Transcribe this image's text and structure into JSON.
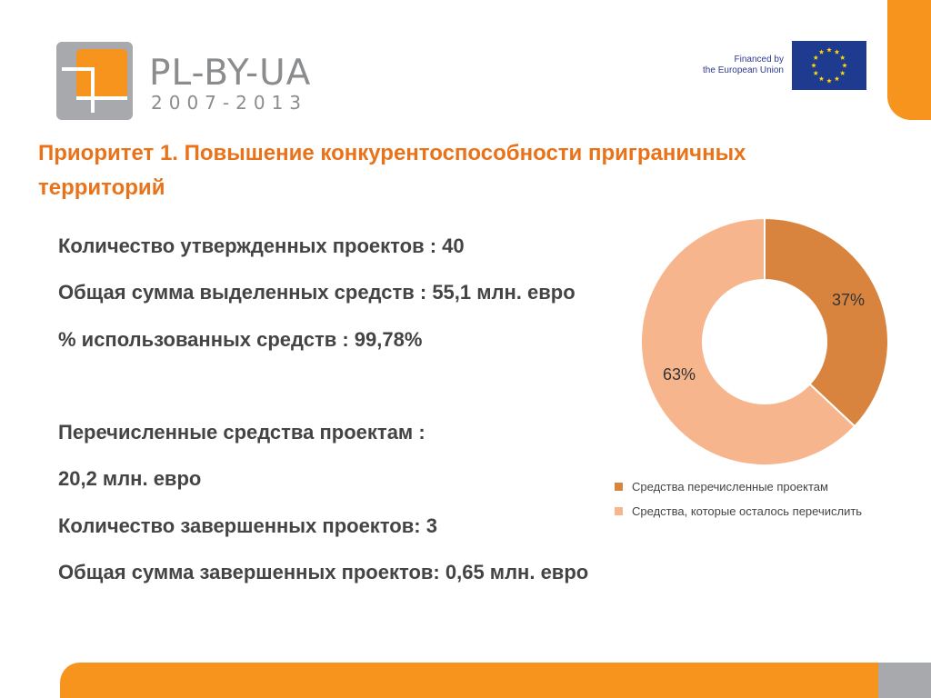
{
  "branding": {
    "logo_title": "PL-BY-UA",
    "logo_years": "2007-2013",
    "eu_financed_line1": "Financed by",
    "eu_financed_line2": "the European Union",
    "logo_mark_icon": "plbyua-logo-icon",
    "eu_flag_icon": "eu-flag-icon",
    "colors": {
      "orange": "#f7941d",
      "gray": "#a7a9ac",
      "eu_blue": "#1f3b8f",
      "eu_star": "#ffdd00"
    }
  },
  "heading": {
    "line1": "Приоритет 1. Повышение конкурентоспособности приграничных",
    "line2": "территорий"
  },
  "stats": [
    "Количество утвержденных проектов : 40",
    "Общая сумма выделенных средств : 55,1 млн. евро",
    "% использованных средств : 99,78%",
    "Перечисленные средства проектам :",
    "20,2 млн. евро",
    "Количество завершенных проектов: 3",
    "Общая сумма завершенных проектов: 0,65 млн. евро"
  ],
  "chart_data": {
    "type": "pie",
    "donut": true,
    "categories": [
      "Средства перечисленные проектам",
      "Средства, которые осталось перечислить"
    ],
    "values": [
      37,
      63
    ],
    "labels": [
      "37%",
      "63%"
    ],
    "colors": [
      "#d9843e",
      "#f7b58e"
    ],
    "legend_position": "bottom"
  }
}
